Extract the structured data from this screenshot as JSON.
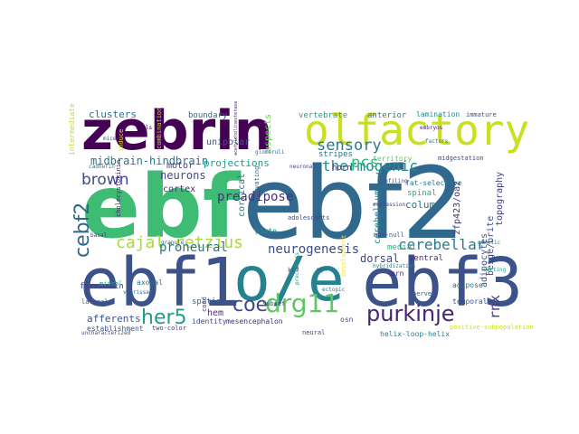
{
  "words": [
    {
      "text": "ebf",
      "color": "#3ebc74"
    },
    {
      "text": "ebf2",
      "color": "#31688e"
    },
    {
      "text": "ebf1",
      "color": "#3b528b"
    },
    {
      "text": "o/e",
      "color": "#26828e"
    },
    {
      "text": "ebf3",
      "color": "#3b528b"
    },
    {
      "text": "zebrin",
      "color": "#440154"
    },
    {
      "text": "olfactory",
      "color": "#c8e020"
    },
    {
      "text": "drg11",
      "color": "#5ec962"
    },
    {
      "text": "purkinje",
      "color": "#482475"
    },
    {
      "text": "coe",
      "color": "#3e4a89"
    },
    {
      "text": "her5",
      "color": "#1f9e89"
    },
    {
      "text": "cebf2",
      "color": "#31688e"
    },
    {
      "text": "cajal-retzius",
      "color": "#a5db36"
    },
    {
      "text": "sensory",
      "color": "#2a788e"
    },
    {
      "text": "thermogenic",
      "color": "#238a8d"
    },
    {
      "text": "brown",
      "color": "#3e4989"
    },
    {
      "text": "pcs",
      "color": "#35b779"
    },
    {
      "text": "cerebellar",
      "color": "#2a788e"
    },
    {
      "text": "rnx",
      "color": "#443983"
    },
    {
      "text": "neurogenesis",
      "color": "#3e4a89"
    },
    {
      "text": "proneural",
      "color": "#2c728e"
    },
    {
      "text": "preadipose",
      "color": "#46327e"
    },
    {
      "text": "midbrain-hindbrain",
      "color": "#2c728e"
    },
    {
      "text": "neurons",
      "color": "#3f4788"
    },
    {
      "text": "cortex",
      "color": "#472d7b"
    },
    {
      "text": "projections",
      "color": "#1f9a8a"
    },
    {
      "text": "motor",
      "color": "#424086"
    },
    {
      "text": "clusters",
      "color": "#2e6f8e"
    },
    {
      "text": "boundary",
      "color": "#31688e"
    },
    {
      "text": "unipolar",
      "color": "#39568c"
    },
    {
      "text": "aspects",
      "color": "#6ccd5a"
    },
    {
      "text": "vertebrate",
      "color": "#20a386"
    },
    {
      "text": "anterior",
      "color": "#2a788e"
    },
    {
      "text": "lamination",
      "color": "#23898e"
    },
    {
      "text": "immature",
      "color": "#3b528b"
    },
    {
      "text": "horn",
      "color": "#482878"
    },
    {
      "text": "stripes",
      "color": "#2d708e"
    },
    {
      "text": "territory",
      "color": "#5ec962"
    },
    {
      "text": "midgestation",
      "color": "#3e4a89"
    },
    {
      "text": "fat-selective",
      "color": "#2a788e"
    },
    {
      "text": "spinal",
      "color": "#29af7f"
    },
    {
      "text": "topography",
      "color": "#424086"
    },
    {
      "text": "beige/brite",
      "color": "#3e4a89"
    },
    {
      "text": "column",
      "color": "#2c728e"
    },
    {
      "text": "cerebellum",
      "color": "#26828e"
    },
    {
      "text": "zfp423/oaz",
      "color": "#46337f"
    },
    {
      "text": "medial",
      "color": "#2fb47c"
    },
    {
      "text": "dorsal",
      "color": "#414487"
    },
    {
      "text": "ventral",
      "color": "#472a7a"
    },
    {
      "text": "adipocytes",
      "color": "#3b528b"
    },
    {
      "text": "adipose",
      "color": "#2e6e8e"
    },
    {
      "text": "temporal",
      "color": "#3a538b"
    },
    {
      "text": "cortical",
      "color": "#2c728e"
    },
    {
      "text": "spatial",
      "color": "#34608d"
    },
    {
      "text": "identity",
      "color": "#3f4889"
    },
    {
      "text": "mesencephalon",
      "color": "#472c7a"
    },
    {
      "text": "hem",
      "color": "#46307e"
    },
    {
      "text": "afferents",
      "color": "#3b518b"
    },
    {
      "text": "forebrain",
      "color": "#424186"
    },
    {
      "text": "axonal",
      "color": "#2d718e"
    },
    {
      "text": "osn",
      "color": "#3d4d8a"
    },
    {
      "text": "helix-loop-helix",
      "color": "#26818e"
    },
    {
      "text": "orn",
      "color": "#482677"
    },
    {
      "text": "plate",
      "color": "#20928c"
    },
    {
      "text": "adolescents",
      "color": "#3e4a89"
    },
    {
      "text": "establishment",
      "color": "#3a548c"
    },
    {
      "text": "cadherin",
      "color": "#2a788e"
    },
    {
      "text": "cholecystokinin",
      "color": "#481b6d"
    },
    {
      "text": "innervating",
      "color": "#31688e"
    },
    {
      "text": "neural",
      "color": "#404688"
    },
    {
      "text": "mgn-null",
      "color": "#3b528b"
    },
    {
      "text": "hybridization",
      "color": "#277f8e"
    },
    {
      "text": "profiling",
      "color": "#38598c"
    },
    {
      "text": "sorting",
      "color": "#22a884"
    },
    {
      "text": "genetic",
      "color": "#2c738e"
    },
    {
      "text": "kl7",
      "color": "#3e4a89"
    },
    {
      "text": "cord",
      "color": "#404588"
    },
    {
      "text": "nerve",
      "color": "#32648e"
    },
    {
      "text": "intermediate",
      "color": "#c2df23"
    },
    {
      "text": "combination",
      "color": "#b5de2b"
    },
    {
      "text": "induce",
      "color": "#dde318"
    },
    {
      "text": "development",
      "color": "#fde725"
    },
    {
      "text": "positive-subpopulation",
      "color": "#d0e11c"
    },
    {
      "text": "mitral",
      "color": "#2ab07f"
    },
    {
      "text": "lateral",
      "color": "#3b528b"
    },
    {
      "text": "subset",
      "color": "#3e4a89"
    },
    {
      "text": "granule",
      "color": "#31688e"
    },
    {
      "text": "ectopic",
      "color": "#2a788e"
    },
    {
      "text": "precursors",
      "color": "#1f988b"
    },
    {
      "text": "cells",
      "color": "#440154"
    },
    {
      "text": "basal",
      "color": "#46337f"
    },
    {
      "text": "expression",
      "color": "#414487"
    },
    {
      "text": "embryos",
      "color": "#482173"
    },
    {
      "text": "neuronal",
      "color": "#3f4788"
    },
    {
      "text": "factors",
      "color": "#2d708e"
    },
    {
      "text": "vibrissae",
      "color": "#35608d"
    },
    {
      "text": "mice",
      "color": "#3b528b"
    },
    {
      "text": "two-color",
      "color": "#453781"
    },
    {
      "text": "uncharacterized",
      "color": "#3e4a89"
    },
    {
      "text": "mgn",
      "color": "#31688e"
    },
    {
      "text": "glomeruli",
      "color": "#2c728e"
    },
    {
      "text": "acetylcholinesterase",
      "color": "#481a6c"
    }
  ]
}
